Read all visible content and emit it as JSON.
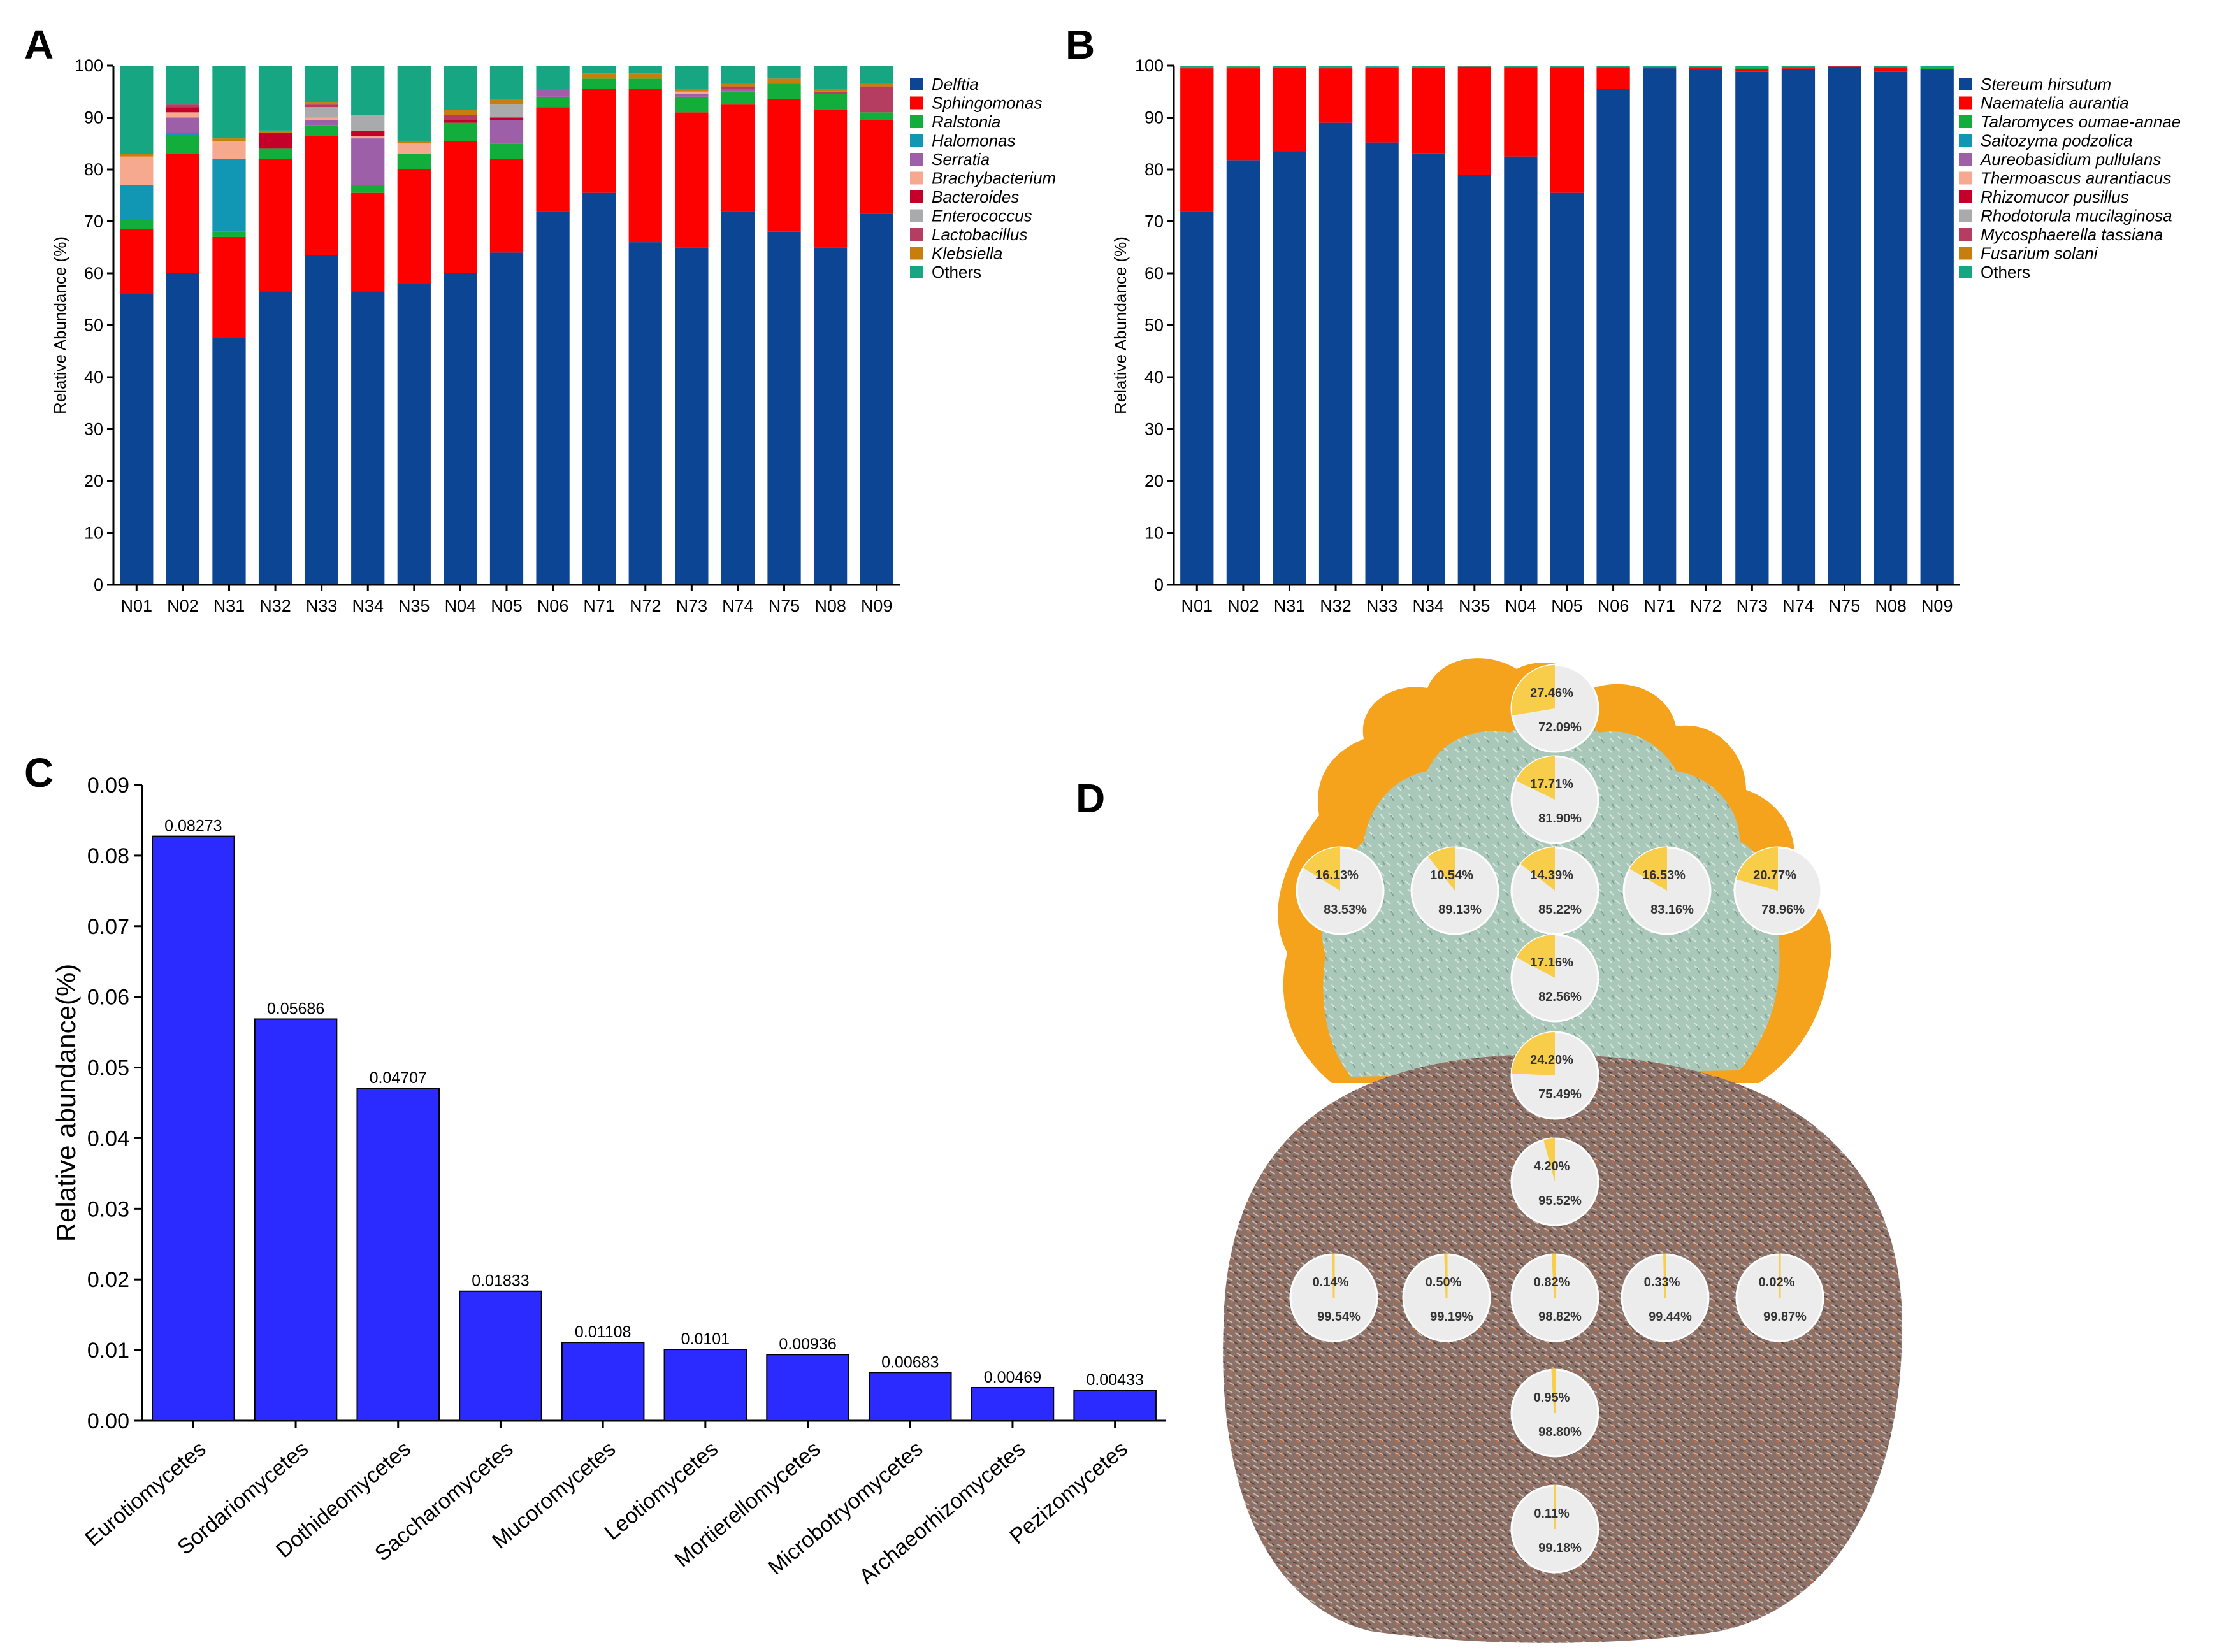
{
  "panel_labels": {
    "A": "A",
    "B": "B",
    "C": "C",
    "D": "D"
  },
  "colors": {
    "blue": "#0b4594",
    "red": "#fd0000",
    "green": "#12ad3a",
    "teal": "#1196b4",
    "purple": "#9c5fa8",
    "salmon": "#f7a98f",
    "crimson": "#c4002a",
    "gray": "#a8aaab",
    "rose": "#b43d61",
    "ochre": "#c77e0a",
    "others": "#16a682",
    "bar_c": "#2b2bff",
    "pie_yellow": "#f7cd4a",
    "pie_gray": "#ececec"
  },
  "chart_data": [
    {
      "id": "A",
      "type": "bar",
      "stacked": true,
      "ylabel": "Relative Abundance (%)",
      "ylim": [
        0,
        100
      ],
      "yticks": [
        "0",
        "10",
        "20",
        "30",
        "40",
        "50",
        "60",
        "70",
        "80",
        "90",
        "100"
      ],
      "categories": [
        "N01",
        "N02",
        "N31",
        "N32",
        "N33",
        "N34",
        "N35",
        "N04",
        "N05",
        "N06",
        "N71",
        "N72",
        "N73",
        "N74",
        "N75",
        "N08",
        "N09"
      ],
      "series": [
        {
          "name": "Delftia",
          "color": "#0b4594",
          "values": [
            56,
            60,
            47.5,
            56.5,
            63.5,
            56.5,
            58,
            60,
            64,
            72,
            75.5,
            66,
            65,
            72,
            68,
            65,
            71.5
          ]
        },
        {
          "name": "Sphingomonas",
          "color": "#fd0000",
          "values": [
            12.5,
            23,
            19.5,
            25.5,
            23,
            19,
            22,
            25.5,
            18,
            20,
            20,
            29.5,
            26,
            20.5,
            25.5,
            26.5,
            18
          ]
        },
        {
          "name": "Ralstonia",
          "color": "#12ad3a",
          "values": [
            2,
            3.5,
            1,
            2,
            2,
            1.5,
            3,
            3.5,
            3,
            2,
            2,
            2,
            3,
            2.5,
            3,
            3,
            1.5
          ]
        },
        {
          "name": "Halomonas",
          "color": "#1196b4",
          "values": [
            6.5,
            0.5,
            14,
            0,
            0,
            0,
            0,
            0,
            0,
            0,
            0,
            0,
            0,
            0,
            0,
            0,
            0
          ]
        },
        {
          "name": "Serratia",
          "color": "#9c5fa8",
          "values": [
            0,
            3,
            0,
            0,
            1,
            9,
            0,
            0,
            4.5,
            1.5,
            0,
            0,
            0.5,
            0.5,
            0,
            0,
            0
          ]
        },
        {
          "name": "Brachybacterium",
          "color": "#f7a98f",
          "values": [
            5.5,
            1,
            3.5,
            0,
            0.5,
            0.5,
            2,
            0,
            0,
            0,
            0,
            0,
            0.5,
            0,
            0,
            0,
            0
          ]
        },
        {
          "name": "Bacteroides",
          "color": "#c4002a",
          "values": [
            0,
            1,
            0,
            3,
            0,
            1,
            0,
            0.5,
            0.5,
            0,
            0,
            0,
            0,
            0,
            0,
            0,
            0
          ]
        },
        {
          "name": "Enterococcus",
          "color": "#a8aaab",
          "values": [
            0,
            0,
            0,
            0,
            2,
            3,
            0,
            0,
            2.5,
            0,
            0,
            0,
            0,
            0,
            0,
            0,
            0
          ]
        },
        {
          "name": "Lactobacillus",
          "color": "#b43d61",
          "values": [
            0,
            0.5,
            0,
            0,
            0.5,
            0,
            0,
            1,
            0,
            0,
            0,
            0,
            0,
            0.5,
            0,
            0.5,
            5
          ]
        },
        {
          "name": "Klebsiella",
          "color": "#c77e0a",
          "values": [
            0.5,
            0,
            0.5,
            0.5,
            0.5,
            0,
            0.5,
            1,
            1,
            0,
            1,
            1,
            0.5,
            0.5,
            1,
            0.5,
            0.5
          ]
        },
        {
          "name": "Others",
          "color": "#16a682",
          "values": [
            17,
            7.5,
            14,
            12.5,
            7,
            9.5,
            14.5,
            8.5,
            6.5,
            4.5,
            1.5,
            1.5,
            4.5,
            3.5,
            2.5,
            4.5,
            3.5
          ]
        }
      ]
    },
    {
      "id": "B",
      "type": "bar",
      "stacked": true,
      "ylabel": "Relative Abundance (%)",
      "ylim": [
        0,
        100
      ],
      "yticks": [
        "0",
        "10",
        "20",
        "30",
        "40",
        "50",
        "60",
        "70",
        "80",
        "90",
        "100"
      ],
      "categories": [
        "N01",
        "N02",
        "N31",
        "N32",
        "N33",
        "N34",
        "N35",
        "N04",
        "N05",
        "N06",
        "N71",
        "N72",
        "N73",
        "N74",
        "N75",
        "N08",
        "N09"
      ],
      "series": [
        {
          "name": "Stereum hirsutum",
          "color": "#0b4594",
          "values": [
            72,
            81.8,
            83.5,
            89,
            85.2,
            83.1,
            79,
            82.5,
            75.5,
            95.5,
            99.5,
            99.2,
            98.8,
            99.4,
            99.8,
            98.8,
            99.2
          ]
        },
        {
          "name": "Naematelia aurantia",
          "color": "#fd0000",
          "values": [
            27.5,
            17.7,
            16.1,
            10.5,
            14.4,
            16.5,
            20.8,
            17.2,
            24.2,
            4.2,
            0.2,
            0.5,
            0.5,
            0.3,
            0.1,
            0.9,
            0.1
          ]
        },
        {
          "name": "Talaromyces oumae-annae",
          "color": "#12ad3a",
          "values": [
            0.2,
            0.3,
            0,
            0,
            0,
            0,
            0,
            0,
            0,
            0,
            0,
            0,
            0.4,
            0,
            0,
            0,
            0.4
          ]
        },
        {
          "name": "Saitozyma podzolica",
          "color": "#1196b4",
          "values": [
            0,
            0,
            0,
            0,
            0.2,
            0,
            0,
            0,
            0,
            0,
            0,
            0,
            0,
            0,
            0,
            0,
            0
          ]
        },
        {
          "name": "Aureobasidium pullulans",
          "color": "#9c5fa8",
          "values": [
            0,
            0,
            0,
            0,
            0,
            0,
            0,
            0,
            0,
            0,
            0,
            0,
            0,
            0,
            0,
            0,
            0
          ]
        },
        {
          "name": "Thermoascus aurantiacus",
          "color": "#f7a98f",
          "values": [
            0,
            0,
            0,
            0,
            0,
            0,
            0,
            0,
            0,
            0,
            0,
            0,
            0,
            0,
            0,
            0,
            0
          ]
        },
        {
          "name": "Rhizomucor pusillus",
          "color": "#c4002a",
          "values": [
            0,
            0,
            0,
            0,
            0,
            0,
            0,
            0,
            0,
            0,
            0,
            0,
            0,
            0,
            0,
            0,
            0
          ]
        },
        {
          "name": "Rhodotorula mucilaginosa",
          "color": "#a8aaab",
          "values": [
            0,
            0,
            0,
            0,
            0,
            0,
            0,
            0,
            0,
            0,
            0,
            0,
            0,
            0,
            0,
            0,
            0
          ]
        },
        {
          "name": "Mycosphaerella tassiana",
          "color": "#b43d61",
          "values": [
            0,
            0,
            0,
            0,
            0,
            0,
            0,
            0,
            0,
            0,
            0,
            0,
            0,
            0,
            0,
            0,
            0
          ]
        },
        {
          "name": "Fusarium solani",
          "color": "#c77e0a",
          "values": [
            0,
            0,
            0,
            0,
            0,
            0,
            0,
            0,
            0,
            0,
            0,
            0,
            0,
            0,
            0,
            0,
            0
          ]
        },
        {
          "name": "Others",
          "color": "#16a682",
          "values": [
            0.3,
            0.2,
            0.4,
            0.5,
            0.2,
            0.4,
            0.2,
            0.3,
            0.3,
            0.3,
            0.3,
            0.3,
            0.3,
            0.3,
            0.1,
            0.3,
            0.3
          ]
        }
      ]
    },
    {
      "id": "C",
      "type": "bar",
      "ylabel": "Relative abundance(%)",
      "ylim": [
        0,
        0.09
      ],
      "yticks": [
        "0.00",
        "0.01",
        "0.02",
        "0.03",
        "0.04",
        "0.05",
        "0.06",
        "0.07",
        "0.08",
        "0.09"
      ],
      "categories": [
        "Eurotiomycetes",
        "Sordariomycetes",
        "Dothideomycetes",
        "Saccharomycetes",
        "Mucoromycetes",
        "Leotiomycetes",
        "Mortierellomycetes",
        "Microbotryomycetes",
        "Archaeorhizomycetes",
        "Pezizomycetes"
      ],
      "values": [
        0.08273,
        0.05686,
        0.04707,
        0.01833,
        0.01108,
        0.0101,
        0.00936,
        0.00683,
        0.00469,
        0.00433
      ],
      "value_labels": [
        "0.08273",
        "0.05686",
        "0.04707",
        "0.01833",
        "0.01108",
        "0.0101",
        "0.00936",
        "0.00683",
        "0.00469",
        "0.00433"
      ]
    },
    {
      "id": "D",
      "type": "pie",
      "description": "Pie charts placed on fruiting body image",
      "pies": [
        {
          "yellow": 27.46,
          "gray": 72.09,
          "yellow_label": "27.46%",
          "gray_label": "72.09%"
        },
        {
          "yellow": 17.71,
          "gray": 81.9,
          "yellow_label": "17.71%",
          "gray_label": "81.90%"
        },
        {
          "yellow": 16.13,
          "gray": 83.53,
          "yellow_label": "16.13%",
          "gray_label": "83.53%"
        },
        {
          "yellow": 10.54,
          "gray": 89.13,
          "yellow_label": "10.54%",
          "gray_label": "89.13%"
        },
        {
          "yellow": 14.39,
          "gray": 85.22,
          "yellow_label": "14.39%",
          "gray_label": "85.22%"
        },
        {
          "yellow": 16.53,
          "gray": 83.16,
          "yellow_label": "16.53%",
          "gray_label": "83.16%"
        },
        {
          "yellow": 20.77,
          "gray": 78.96,
          "yellow_label": "20.77%",
          "gray_label": "78.96%"
        },
        {
          "yellow": 17.16,
          "gray": 82.56,
          "yellow_label": "17.16%",
          "gray_label": "82.56%"
        },
        {
          "yellow": 24.2,
          "gray": 75.49,
          "yellow_label": "24.20%",
          "gray_label": "75.49%"
        },
        {
          "yellow": 4.2,
          "gray": 95.52,
          "yellow_label": "4.20%",
          "gray_label": "95.52%"
        },
        {
          "yellow": 0.14,
          "gray": 99.54,
          "yellow_label": "0.14%",
          "gray_label": "99.54%"
        },
        {
          "yellow": 0.5,
          "gray": 99.19,
          "yellow_label": "0.50%",
          "gray_label": "99.19%"
        },
        {
          "yellow": 0.82,
          "gray": 98.82,
          "yellow_label": "0.82%",
          "gray_label": "98.82%"
        },
        {
          "yellow": 0.33,
          "gray": 99.44,
          "yellow_label": "0.33%",
          "gray_label": "99.44%"
        },
        {
          "yellow": 0.02,
          "gray": 99.87,
          "yellow_label": "0.02%",
          "gray_label": "99.87%"
        },
        {
          "yellow": 0.95,
          "gray": 98.8,
          "yellow_label": "0.95%",
          "gray_label": "98.80%"
        },
        {
          "yellow": 0.11,
          "gray": 99.18,
          "yellow_label": "0.11%",
          "gray_label": "99.18%"
        }
      ]
    }
  ]
}
